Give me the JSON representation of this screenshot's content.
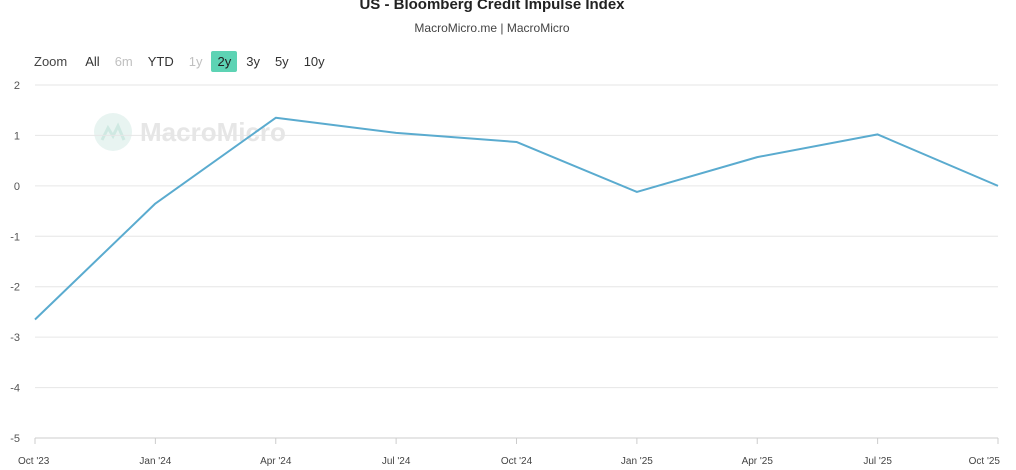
{
  "title": "US - Bloomberg Credit Impulse Index",
  "subtitle": "MacroMicro.me | MacroMicro",
  "range_selector": {
    "zoom_label": "Zoom",
    "buttons": [
      {
        "label": "All",
        "state": "enabled"
      },
      {
        "label": "6m",
        "state": "disabled"
      },
      {
        "label": "YTD",
        "state": "enabled"
      },
      {
        "label": "1y",
        "state": "disabled"
      },
      {
        "label": "2y",
        "state": "active"
      },
      {
        "label": "3y",
        "state": "enabled"
      },
      {
        "label": "5y",
        "state": "enabled"
      },
      {
        "label": "10y",
        "state": "enabled"
      }
    ]
  },
  "watermark": {
    "text": "MacroMicro",
    "icon": "macromicro-logo-icon"
  },
  "colors": {
    "line": "#5aabcf",
    "grid": "#e6e6e6",
    "active_button": "#5dd3b4"
  },
  "chart_data": {
    "type": "line",
    "title": "US - Bloomberg Credit Impulse Index",
    "x": [
      "Oct '23",
      "Jan '24",
      "Apr '24",
      "Jul '24",
      "Oct '24",
      "Jan '25",
      "Apr '25",
      "Jul '25",
      "Oct '25"
    ],
    "series": [
      {
        "values": [
          -2.65,
          -0.35,
          1.35,
          1.05,
          0.87,
          -0.12,
          0.57,
          1.02,
          0.0
        ]
      }
    ],
    "yticks": [
      "2",
      "1",
      "0",
      "-1",
      "-2",
      "-3",
      "-4",
      "-5"
    ],
    "ylim": [
      -5,
      2
    ],
    "grid": true,
    "legend": "none"
  }
}
